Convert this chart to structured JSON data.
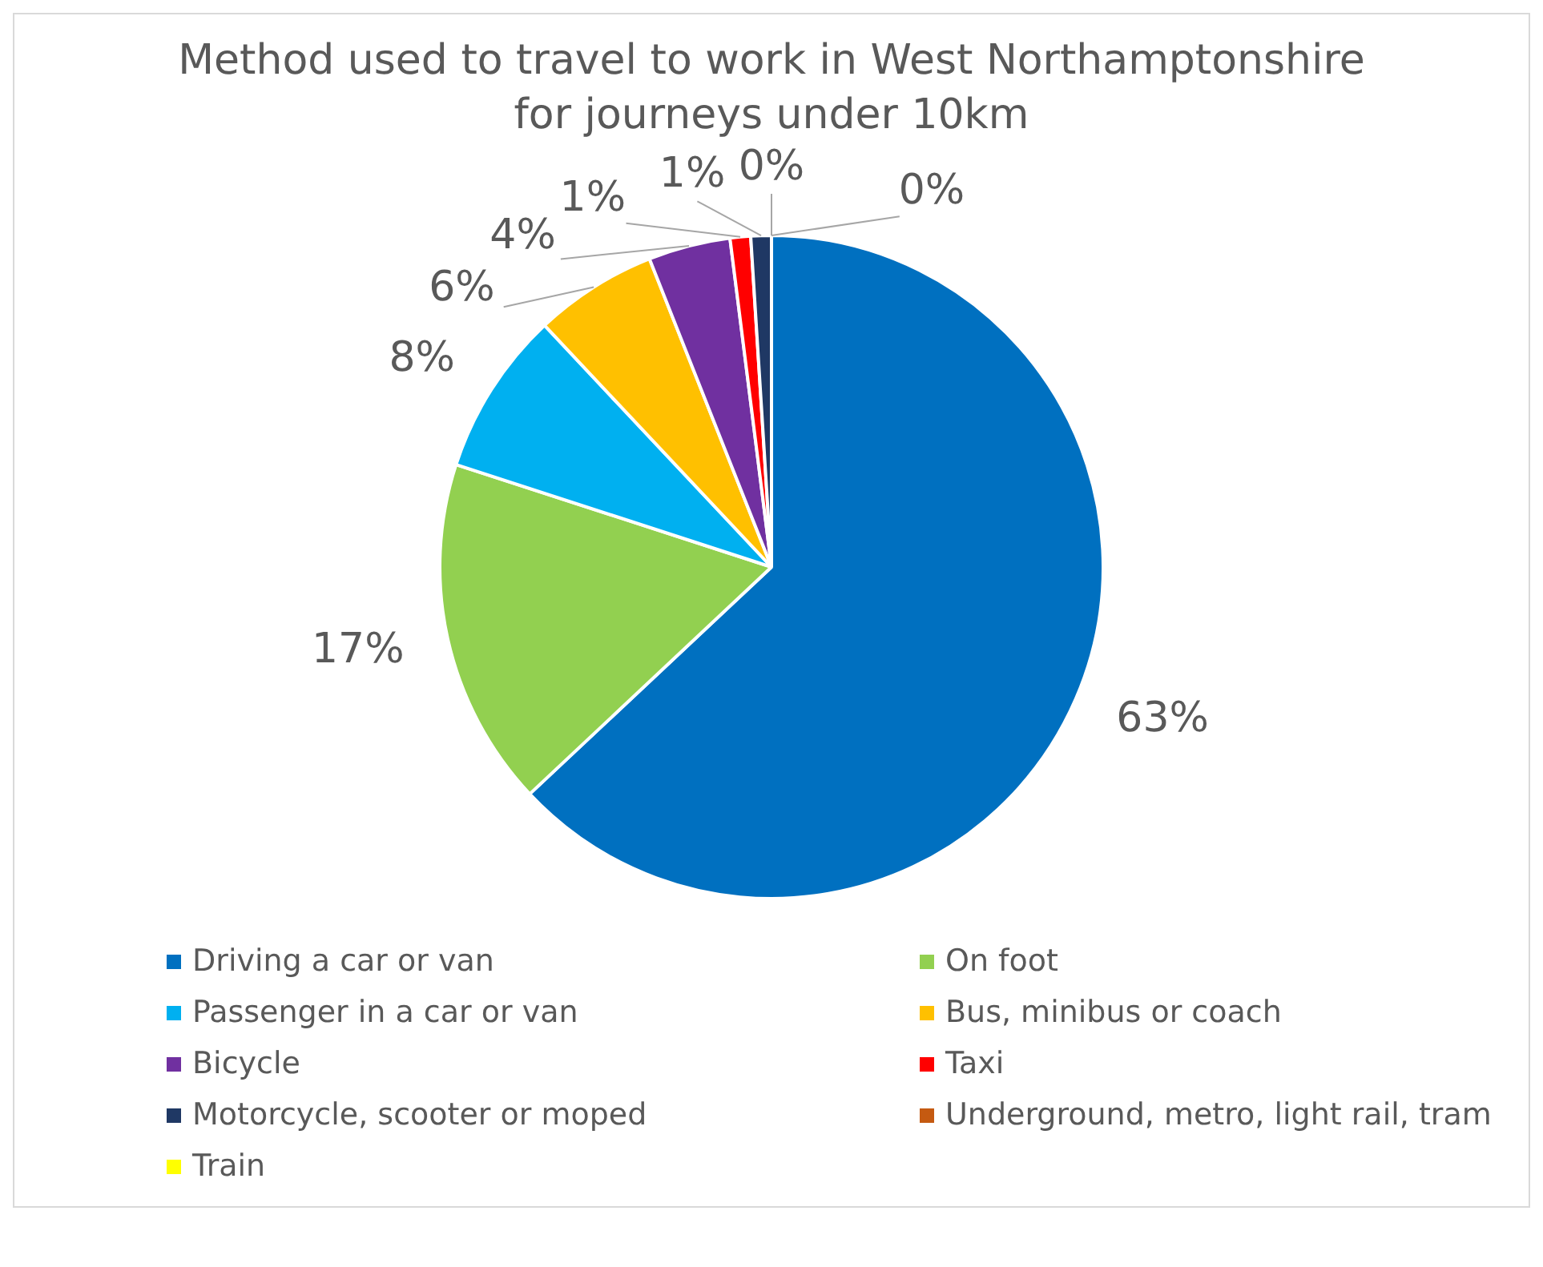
{
  "chart_data": {
    "type": "pie",
    "title": "Method used to travel to work in West Northamptonshire for journeys under 10km",
    "categories": [
      "Driving a car or van",
      "On foot",
      "Passenger in a car or van",
      "Bus, minibus or coach",
      "Bicycle",
      "Taxi",
      "Motorcycle, scooter or moped",
      "Underground, metro, light rail, tram",
      "Train"
    ],
    "values": [
      63,
      17,
      8,
      6,
      4,
      1,
      1,
      0,
      0
    ],
    "colors": [
      "#0070c0",
      "#92d050",
      "#00b0f0",
      "#ffc000",
      "#7030a0",
      "#ff0000",
      "#1f3864",
      "#c55a11",
      "#ffff00"
    ],
    "value_labels": [
      "63%",
      "17%",
      "8%",
      "6%",
      "4%",
      "1%",
      "1%",
      "0%",
      "0%"
    ],
    "legend": "bottom"
  }
}
